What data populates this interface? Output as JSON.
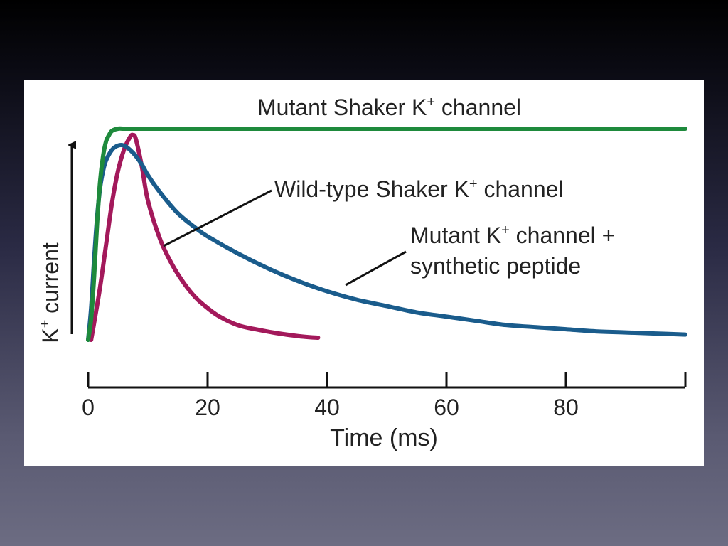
{
  "chart_data": {
    "type": "line",
    "xlabel": "Time (ms)",
    "ylabel_main": "K",
    "ylabel_sup": "+",
    "ylabel_rest": " current",
    "xlim": [
      0,
      100
    ],
    "ylim": [
      0,
      1
    ],
    "x_ticks": [
      0,
      20,
      40,
      60,
      80,
      100
    ],
    "x_tick_labels": [
      "0",
      "20",
      "40",
      "60",
      "80"
    ],
    "grid": false,
    "series": [
      {
        "key": "mutant",
        "label_main": "Mutant Shaker K",
        "label_sup": "+",
        "label_rest": " channel",
        "color": "#1e8a3c",
        "x": [
          0,
          0.5,
          1,
          1.5,
          2,
          2.5,
          3,
          3.5,
          4,
          5,
          6,
          8,
          10,
          20,
          40,
          60,
          80,
          100
        ],
        "y": [
          0,
          0.1,
          0.3,
          0.55,
          0.75,
          0.87,
          0.94,
          0.97,
          0.99,
          1.0,
          1.0,
          1.0,
          1.0,
          1.0,
          1.0,
          1.0,
          1.0,
          1.0
        ]
      },
      {
        "key": "wildtype",
        "label_main": "Wild-type Shaker K",
        "label_sup": "+",
        "label_rest": " channel",
        "color": "#a3195b",
        "x": [
          0.5,
          1,
          2,
          3,
          4,
          5,
          6,
          7,
          7.5,
          8,
          9,
          10,
          12,
          14,
          16,
          18,
          20,
          22,
          25,
          28,
          32,
          36,
          38.5
        ],
        "y": [
          0,
          0.08,
          0.25,
          0.45,
          0.65,
          0.8,
          0.9,
          0.96,
          0.97,
          0.95,
          0.82,
          0.66,
          0.48,
          0.36,
          0.27,
          0.2,
          0.15,
          0.11,
          0.07,
          0.05,
          0.03,
          0.015,
          0.01
        ]
      },
      {
        "key": "peptide",
        "label_line1_main": "Mutant K",
        "label_line1_sup": "+",
        "label_line1_rest": " channel +",
        "label_line2": "synthetic peptide",
        "color": "#1a5c8c",
        "x": [
          0,
          0.5,
          1,
          1.5,
          2,
          2.5,
          3,
          4,
          5,
          6,
          7,
          8,
          9,
          10,
          12,
          15,
          18,
          20,
          25,
          30,
          35,
          40,
          45,
          50,
          55,
          60,
          65,
          70,
          75,
          80,
          85,
          90,
          95,
          100
        ],
        "y": [
          0,
          0.15,
          0.38,
          0.58,
          0.72,
          0.8,
          0.85,
          0.9,
          0.92,
          0.92,
          0.9,
          0.87,
          0.83,
          0.78,
          0.7,
          0.6,
          0.53,
          0.49,
          0.41,
          0.34,
          0.28,
          0.23,
          0.19,
          0.16,
          0.13,
          0.11,
          0.09,
          0.07,
          0.06,
          0.05,
          0.04,
          0.035,
          0.03,
          0.025
        ]
      }
    ]
  }
}
